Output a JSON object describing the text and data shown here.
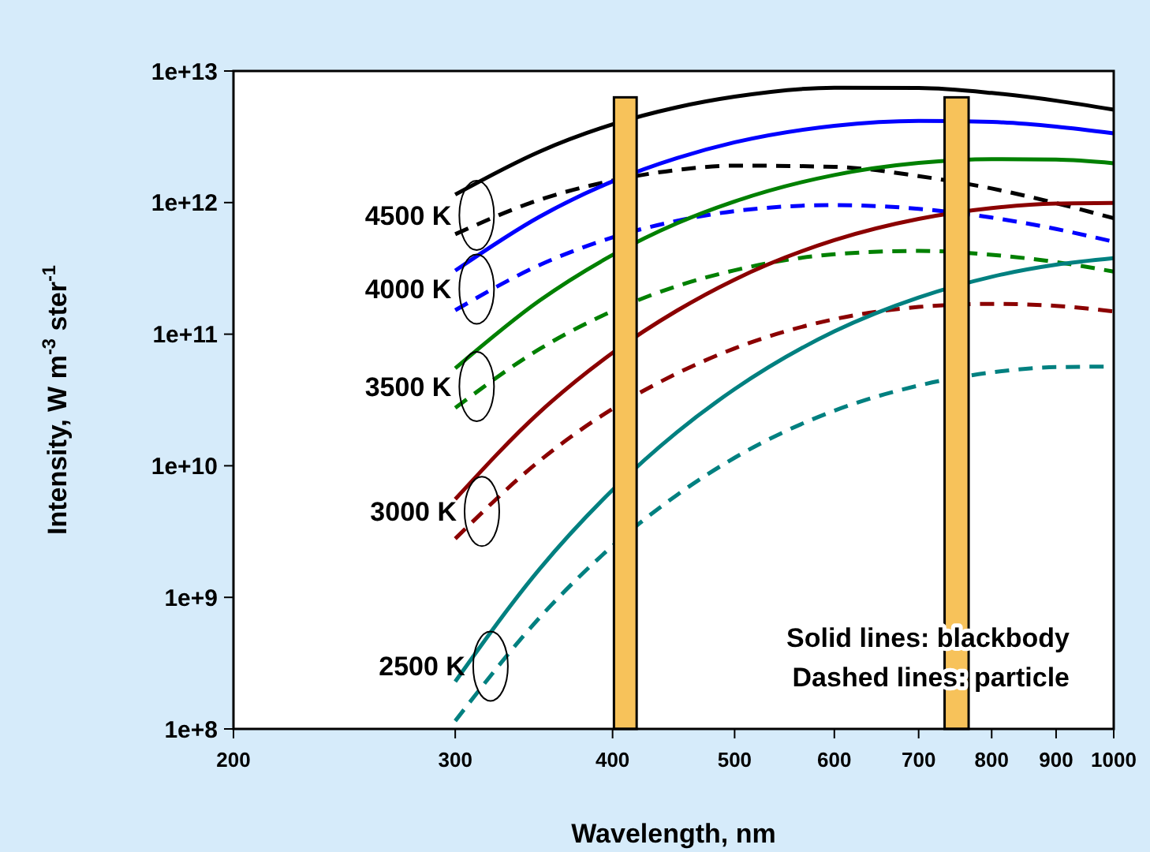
{
  "chart_data": {
    "type": "line",
    "xlabel": "Wavelength, nm",
    "ylabel": "Intensity, W m$^{-3}$ ster$^{-1}$",
    "log": "xy",
    "grid": false,
    "marker": "none",
    "x": [
      300,
      350,
      400,
      450,
      500,
      600,
      700,
      800,
      900,
      1000
    ],
    "xlim": [
      200,
      1000
    ],
    "xticks": [
      200,
      300,
      400,
      500,
      600,
      700,
      800,
      900,
      1000
    ],
    "ylim": [
      100000000.0,
      10000000000000.0
    ],
    "yticks": [
      {
        "value": 100000000.0,
        "label": "1e+8"
      },
      {
        "value": 1000000000.0,
        "label": "1e+9"
      },
      {
        "value": 10000000000.0,
        "label": "1e+10"
      },
      {
        "value": 100000000000.0,
        "label": "1e+11"
      },
      {
        "value": 1000000000000.0,
        "label": "1e+12"
      },
      {
        "value": 10000000000000.0,
        "label": "1e+13"
      }
    ],
    "series": [
      {
        "color": "#000000",
        "line_style": "solid",
        "values": [
          1150000000000.0,
          2440000000000.0,
          3930000000000.0,
          5300000000000.0,
          6380000000000.0,
          7460000000000.0,
          7430000000000.0,
          6810000000000.0,
          5950000000000.0,
          5080000000000.0
        ]
      },
      {
        "color": "#000000",
        "line_style": "dashed",
        "values": [
          575000000000.0,
          1050000000000.0,
          1470000000000.0,
          1770000000000.0,
          1910000000000.0,
          1870000000000.0,
          1590000000000.0,
          1280000000000.0,
          990000000000.0,
          760000000000.0
        ]
      },
      {
        "color": "#0000ff",
        "line_style": "solid",
        "values": [
          304000000000.0,
          781000000000.0,
          1450000000000.0,
          2180000000000.0,
          2870000000000.0,
          3830000000000.0,
          4180000000000.0,
          4100000000000.0,
          3780000000000.0,
          3360000000000.0
        ]
      },
      {
        "color": "#0000ff",
        "line_style": "dashed",
        "values": [
          152000000000.0,
          335000000000.0,
          544000000000.0,
          727000000000.0,
          861000000000.0,
          958000000000.0,
          896000000000.0,
          769000000000.0,
          630000000000.0,
          504000000000.0
        ]
      },
      {
        "color": "#008000",
        "line_style": "solid",
        "values": [
          55000000000.0,
          180000000000.0,
          400000000000.0,
          696000000000.0,
          1020000000000.0,
          1620000000000.0,
          2000000000000.0,
          2140000000000.0,
          2120000000000.0,
          1990000000000.0
        ]
      },
      {
        "color": "#008000",
        "line_style": "dashed",
        "values": [
          27500000000.0,
          77100000000.0,
          150000000000.0,
          232000000000.0,
          306000000000.0,
          405000000000.0,
          429000000000.0,
          401000000000.0,
          353000000000.0,
          299000000000.0
        ]
      },
      {
        "color": "#8b0000",
        "line_style": "solid",
        "values": [
          5570000000.0,
          25500000000.0,
          72200000000.0,
          151000000000.0,
          260000000000.0,
          518000000000.0,
          751000000000.0,
          908000000000.0,
          982000000000.0,
          993000000000.0
        ]
      },
      {
        "color": "#8b0000",
        "line_style": "dashed",
        "values": [
          2790000000.0,
          10900000000.0,
          27100000000.0,
          50300000000.0,
          78000000000.0,
          130000000000.0,
          161000000000.0,
          170000000000.0,
          164000000000.0,
          149000000000.0
        ]
      },
      {
        "color": "#008080",
        "line_style": "solid",
        "values": [
          229000000.0,
          1640000000.0,
          6550000000.0,
          18000000000.0,
          38200000000.0,
          105000000000.0,
          190000000000.0,
          273000000000.0,
          337000000000.0,
          378000000000.0
        ]
      },
      {
        "color": "#008080",
        "line_style": "dashed",
        "values": [
          115000000.0,
          700000000.0,
          2460000000.0,
          6000000000.0,
          11500000000.0,
          26200000000.0,
          40700000000.0,
          51200000000.0,
          56200000000.0,
          56700000000.0
        ]
      }
    ],
    "bands": [
      {
        "axis": "x",
        "from": 401,
        "to": 418,
        "color": "#f7c25a"
      },
      {
        "axis": "x",
        "from": 734,
        "to": 767,
        "color": "#f7c25a"
      }
    ],
    "annotations": [
      {
        "text": "4500 K",
        "x": 312,
        "y": 800000000000.0
      },
      {
        "text": "4000 K",
        "x": 312,
        "y": 220000000000.0
      },
      {
        "text": "3500 K",
        "x": 312,
        "y": 40000000000.0
      },
      {
        "text": "3000 K",
        "x": 315,
        "y": 4500000000.0
      },
      {
        "text": "2500 K",
        "x": 320,
        "y": 300000000.0
      },
      "Solid lines: blackbody",
      "Dashed lines: particle"
    ]
  }
}
